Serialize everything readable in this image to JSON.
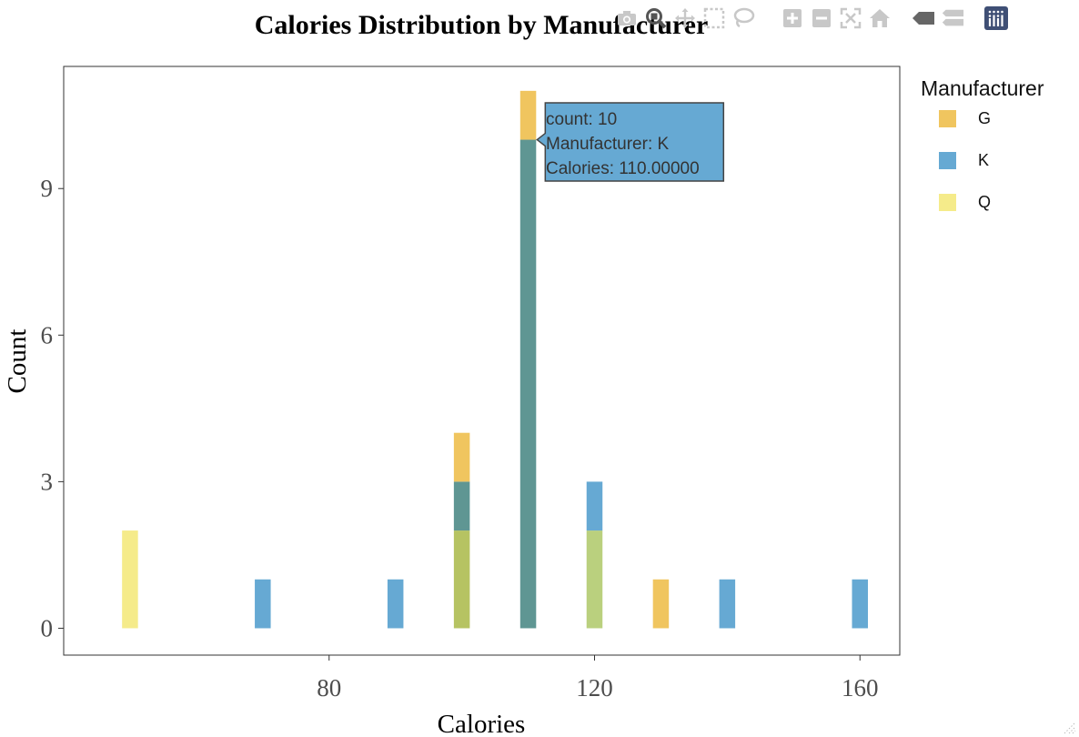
{
  "modebar": {
    "buttons": [
      "camera-icon",
      "zoom-icon",
      "pan-icon",
      "box-select-icon",
      "lasso-select-icon",
      "zoom-in-icon",
      "zoom-out-icon",
      "autoscale-icon",
      "reset-axes-icon",
      "spike-lines-icon",
      "compare-hover-icon",
      "plotly-logo-icon"
    ]
  },
  "legend": {
    "title": "Manufacturer",
    "items": [
      {
        "label": "G",
        "color": "#F0C55F"
      },
      {
        "label": "K",
        "color": "#66A9D3"
      },
      {
        "label": "Q",
        "color": "#F5EB8A"
      }
    ]
  },
  "tooltip": {
    "lines": [
      "count: 10",
      "Manufacturer: K",
      "Calories: 110.00000"
    ],
    "color": "#66A9D3"
  },
  "chart_data": {
    "type": "bar",
    "title": "Calories Distribution by Manufacturer",
    "xlabel": "Calories",
    "ylabel": "Count",
    "barmode": "overlay",
    "bin_width": 5,
    "xlim": [
      40,
      166
    ],
    "ylim": [
      -0.55,
      11.5
    ],
    "xticks": [
      80,
      120,
      160
    ],
    "yticks": [
      0,
      3,
      6,
      9
    ],
    "grid": false,
    "legend_position": "right",
    "series": [
      {
        "name": "G",
        "color": "#F0C55F",
        "x": [
          100,
          110,
          130
        ],
        "counts": [
          4,
          11,
          1
        ]
      },
      {
        "name": "K",
        "color": "#66A9D3",
        "x": [
          70,
          90,
          100,
          110,
          120,
          140,
          160
        ],
        "counts": [
          1,
          1,
          3,
          10,
          3,
          1,
          1
        ]
      },
      {
        "name": "Q",
        "color": "#F5EB8A",
        "x": [
          50,
          100,
          120
        ],
        "counts": [
          2,
          2,
          2
        ]
      }
    ],
    "overlap_colors": {
      "G+K": "#5F9693",
      "G+K+Q": "#B6C362",
      "K+Q": "#BAD07E"
    }
  }
}
